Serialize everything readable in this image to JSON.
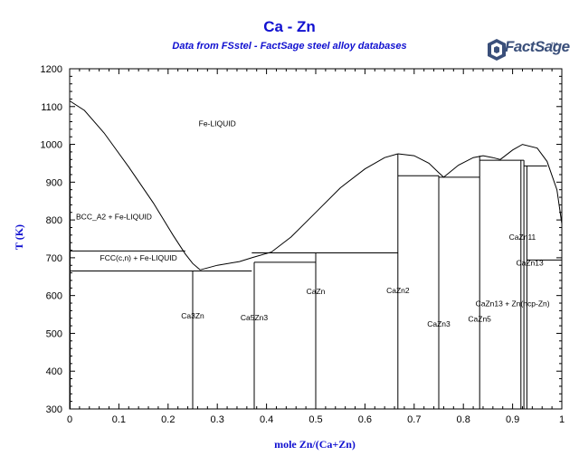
{
  "header": {
    "title": "Ca - Zn",
    "subtitle": "Data from FSstel - FactSage steel alloy databases",
    "logo_text": "FactSage",
    "logo_sup": "™"
  },
  "colors": {
    "title": "#1010d0",
    "lines": "#000000",
    "logo": "#3a4f7a"
  },
  "chart_data": {
    "type": "phase-diagram",
    "xlabel": "mole Zn/(Ca+Zn)",
    "ylabel": "T (K)",
    "xlim": [
      0,
      1
    ],
    "ylim": [
      300,
      1200
    ],
    "x_ticks": [
      0,
      0.1,
      0.2,
      0.3,
      0.4,
      0.5,
      0.6,
      0.7,
      0.8,
      0.9,
      1
    ],
    "x_tick_labels": [
      "0",
      "0.1",
      "0.2",
      "0.3",
      "0.4",
      "0.5",
      "0.6",
      "0.7",
      "0.8",
      "0.9",
      "1"
    ],
    "y_ticks": [
      300,
      400,
      500,
      600,
      700,
      800,
      900,
      1000,
      1100,
      1200
    ],
    "grid": false,
    "liquidus": [
      {
        "name": "",
        "points": [
          [
            0,
            1115
          ],
          [
            0.03,
            1090
          ],
          [
            0.07,
            1030
          ],
          [
            0.12,
            940
          ],
          [
            0.17,
            845
          ],
          [
            0.21,
            760
          ],
          [
            0.235,
            710
          ],
          [
            0.25,
            685
          ],
          [
            0.265,
            668
          ]
        ]
      },
      {
        "name": "",
        "points": [
          [
            0.265,
            668
          ],
          [
            0.3,
            680
          ],
          [
            0.345,
            690
          ],
          [
            0.37,
            700
          ],
          [
            0.41,
            715
          ],
          [
            0.45,
            755
          ],
          [
            0.5,
            820
          ],
          [
            0.55,
            885
          ],
          [
            0.6,
            935
          ],
          [
            0.64,
            965
          ],
          [
            0.667,
            975
          ]
        ]
      },
      {
        "name": "",
        "points": [
          [
            0.667,
            975
          ],
          [
            0.7,
            970
          ],
          [
            0.73,
            950
          ],
          [
            0.75,
            925
          ],
          [
            0.76,
            913
          ]
        ]
      },
      {
        "name": "",
        "points": [
          [
            0.76,
            913
          ],
          [
            0.79,
            945
          ],
          [
            0.82,
            965
          ],
          [
            0.84,
            970
          ],
          [
            0.86,
            965
          ],
          [
            0.875,
            960
          ]
        ]
      },
      {
        "name": "",
        "points": [
          [
            0.875,
            960
          ],
          [
            0.9,
            985
          ],
          [
            0.92,
            1000
          ],
          [
            0.95,
            990
          ],
          [
            0.97,
            955
          ],
          [
            0.99,
            880
          ],
          [
            1,
            790
          ]
        ]
      }
    ],
    "solidus_lines": [
      {
        "name": "",
        "points": [
          [
            0,
            665
          ],
          [
            0.265,
            665
          ]
        ]
      },
      {
        "name": "",
        "points": [
          [
            0,
            718
          ],
          [
            0.235,
            718
          ]
        ]
      },
      {
        "name": "",
        "points": [
          [
            0.25,
            665
          ],
          [
            0.37,
            665
          ]
        ]
      },
      {
        "name": "",
        "points": [
          [
            0.375,
            688
          ],
          [
            0.5,
            688
          ]
        ]
      },
      {
        "name": "",
        "points": [
          [
            0.37,
            713
          ],
          [
            0.667,
            713
          ]
        ]
      },
      {
        "name": "",
        "points": [
          [
            0.667,
            917
          ],
          [
            0.75,
            917
          ]
        ]
      },
      {
        "name": "",
        "points": [
          [
            0.75,
            913
          ],
          [
            0.833,
            913
          ]
        ]
      },
      {
        "name": "",
        "points": [
          [
            0.833,
            958
          ],
          [
            0.923,
            958
          ]
        ]
      },
      {
        "name": "",
        "points": [
          [
            0.923,
            943
          ],
          [
            0.97,
            943
          ]
        ]
      },
      {
        "name": "",
        "points": [
          [
            0.929,
            694
          ],
          [
            1,
            694
          ]
        ]
      }
    ],
    "compound_lines": [
      {
        "name": "",
        "points": [
          [
            0.25,
            300
          ],
          [
            0.25,
            665
          ]
        ]
      },
      {
        "name": "",
        "points": [
          [
            0.375,
            300
          ],
          [
            0.375,
            688
          ]
        ]
      },
      {
        "name": "",
        "points": [
          [
            0.5,
            300
          ],
          [
            0.5,
            713
          ]
        ]
      },
      {
        "name": "",
        "points": [
          [
            0.667,
            300
          ],
          [
            0.667,
            975
          ]
        ]
      },
      {
        "name": "",
        "points": [
          [
            0.75,
            300
          ],
          [
            0.75,
            917
          ]
        ]
      },
      {
        "name": "",
        "points": [
          [
            0.833,
            300
          ],
          [
            0.833,
            970
          ]
        ]
      },
      {
        "name": "",
        "points": [
          [
            0.917,
            300
          ],
          [
            0.917,
            958
          ]
        ]
      },
      {
        "name": "",
        "points": [
          [
            0.923,
            300
          ],
          [
            0.923,
            958
          ]
        ]
      },
      {
        "name": "",
        "points": [
          [
            0.929,
            300
          ],
          [
            0.929,
            943
          ]
        ]
      },
      {
        "name": "",
        "points": [
          [
            0.001,
            300
          ],
          [
            0.001,
            1000
          ]
        ]
      }
    ],
    "region_labels": [
      {
        "text": "Fe-LIQUID",
        "x": 0.3,
        "y": 1048
      },
      {
        "text": "BCC_A2 + Fe-LIQUID",
        "x": 0.09,
        "y": 801
      },
      {
        "text": "FCC(c,n) + Fe-LIQUID",
        "x": 0.14,
        "y": 692
      },
      {
        "text": "Ca3Zn",
        "x": 0.25,
        "y": 539
      },
      {
        "text": "Ca5Zn3",
        "x": 0.375,
        "y": 534
      },
      {
        "text": "CaZn",
        "x": 0.5,
        "y": 604
      },
      {
        "text": "CaZn2",
        "x": 0.667,
        "y": 606
      },
      {
        "text": "CaZn3",
        "x": 0.75,
        "y": 518
      },
      {
        "text": "CaZn5",
        "x": 0.833,
        "y": 531
      },
      {
        "text": "CaZn11",
        "x": 0.92,
        "y": 748
      },
      {
        "text": "CaZn13",
        "x": 0.935,
        "y": 679
      },
      {
        "text": "CaZn13 + Zn(hcp-Zn)",
        "x": 0.9,
        "y": 572
      }
    ]
  }
}
